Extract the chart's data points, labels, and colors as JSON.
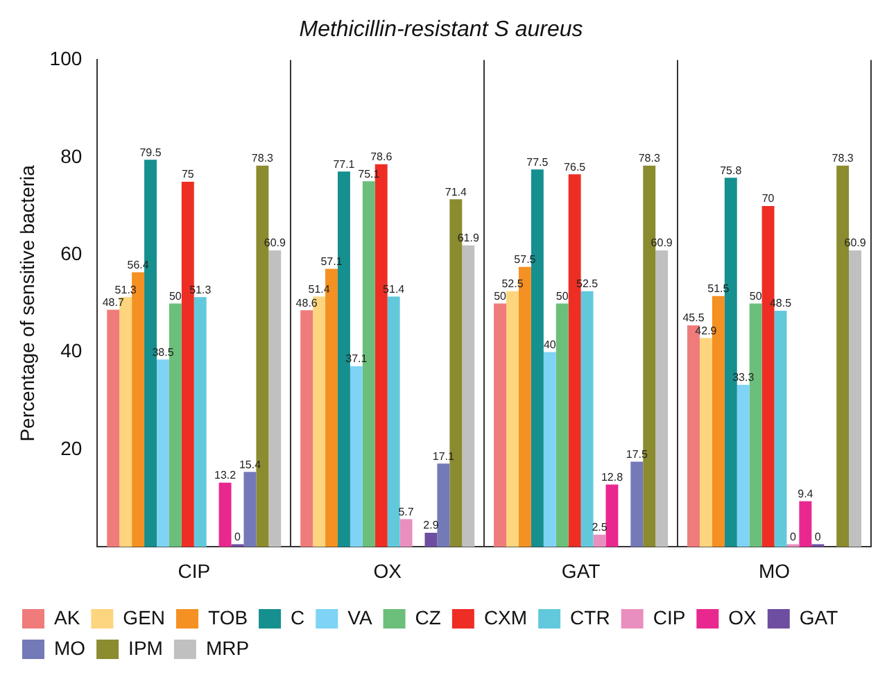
{
  "chart_data": {
    "type": "bar",
    "title": "Methicillin-resistant S aureus",
    "ylabel": "Percentage of sensitive bacteria",
    "categories": [
      "CIP",
      "OX",
      "GAT",
      "MO"
    ],
    "ylim": [
      0,
      100
    ],
    "yticks": [
      20,
      40,
      60,
      80,
      100
    ],
    "grid": false,
    "legend": "bottom",
    "data_labels": true,
    "series": [
      {
        "name": "AK",
        "color": "#f07b7b",
        "values": [
          48.7,
          48.6,
          50,
          45.5
        ]
      },
      {
        "name": "GEN",
        "color": "#fdd57e",
        "values": [
          51.3,
          51.4,
          52.5,
          42.9
        ]
      },
      {
        "name": "TOB",
        "color": "#f59022",
        "values": [
          56.4,
          57.1,
          57.5,
          51.5
        ]
      },
      {
        "name": "C",
        "color": "#168f8f",
        "values": [
          79.5,
          77.1,
          77.5,
          75.8
        ]
      },
      {
        "name": "VA",
        "color": "#7fd3f5",
        "values": [
          38.5,
          37.1,
          40,
          33.3
        ]
      },
      {
        "name": "CZ",
        "color": "#6bbf7a",
        "values": [
          50,
          75.1,
          50,
          50
        ]
      },
      {
        "name": "CXM",
        "color": "#ee2e24",
        "values": [
          75,
          78.6,
          76.5,
          70
        ]
      },
      {
        "name": "CTR",
        "color": "#62c9dc",
        "values": [
          51.3,
          51.4,
          52.5,
          48.5
        ]
      },
      {
        "name": "CIP",
        "color": "#e98fbf",
        "values": [
          null,
          5.7,
          2.5,
          0
        ]
      },
      {
        "name": "OX",
        "color": "#e8288f",
        "values": [
          13.2,
          null,
          12.8,
          9.4
        ]
      },
      {
        "name": "GAT",
        "color": "#6e4ea0",
        "values": [
          0,
          2.9,
          null,
          0
        ]
      },
      {
        "name": "MO",
        "color": "#7479b8",
        "values": [
          15.4,
          17.1,
          17.5,
          null
        ]
      },
      {
        "name": "IPM",
        "color": "#8b8b30",
        "values": [
          78.3,
          71.4,
          78.3,
          78.3
        ]
      },
      {
        "name": "MRP",
        "color": "#c0c0c0",
        "values": [
          60.9,
          61.9,
          60.9,
          60.9
        ]
      }
    ]
  }
}
